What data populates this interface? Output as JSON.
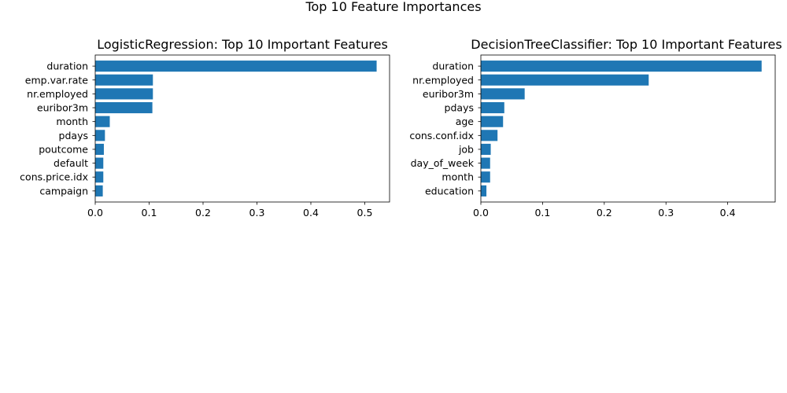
{
  "suptitle": "Top 10 Feature Importances",
  "bar_color": "#1f77b4",
  "chart_data": [
    {
      "type": "bar",
      "orientation": "horizontal",
      "title": "LogisticRegression: Top 10 Important Features",
      "categories": [
        "duration",
        "emp.var.rate",
        "nr.employed",
        "euribor3m",
        "month",
        "pdays",
        "poutcome",
        "default",
        "cons.price.idx",
        "campaign"
      ],
      "values": [
        0.522,
        0.107,
        0.107,
        0.106,
        0.027,
        0.018,
        0.016,
        0.015,
        0.015,
        0.014
      ],
      "xlim": [
        0,
        0.546
      ],
      "xticks": [
        0.0,
        0.1,
        0.2,
        0.3,
        0.4,
        0.5
      ],
      "xtick_labels": [
        "0.0",
        "0.1",
        "0.2",
        "0.3",
        "0.4",
        "0.5"
      ],
      "grid": false
    },
    {
      "type": "bar",
      "orientation": "horizontal",
      "title": "DecisionTreeClassifier: Top 10 Important Features",
      "categories": [
        "duration",
        "nr.employed",
        "euribor3m",
        "pdays",
        "age",
        "cons.conf.idx",
        "job",
        "day_of_week",
        "month",
        "education"
      ],
      "values": [
        0.455,
        0.272,
        0.071,
        0.038,
        0.036,
        0.027,
        0.016,
        0.015,
        0.015,
        0.009
      ],
      "xlim": [
        0,
        0.477
      ],
      "xticks": [
        0.0,
        0.1,
        0.2,
        0.3,
        0.4
      ],
      "xtick_labels": [
        "0.0",
        "0.1",
        "0.2",
        "0.3",
        "0.4"
      ],
      "grid": false
    }
  ]
}
